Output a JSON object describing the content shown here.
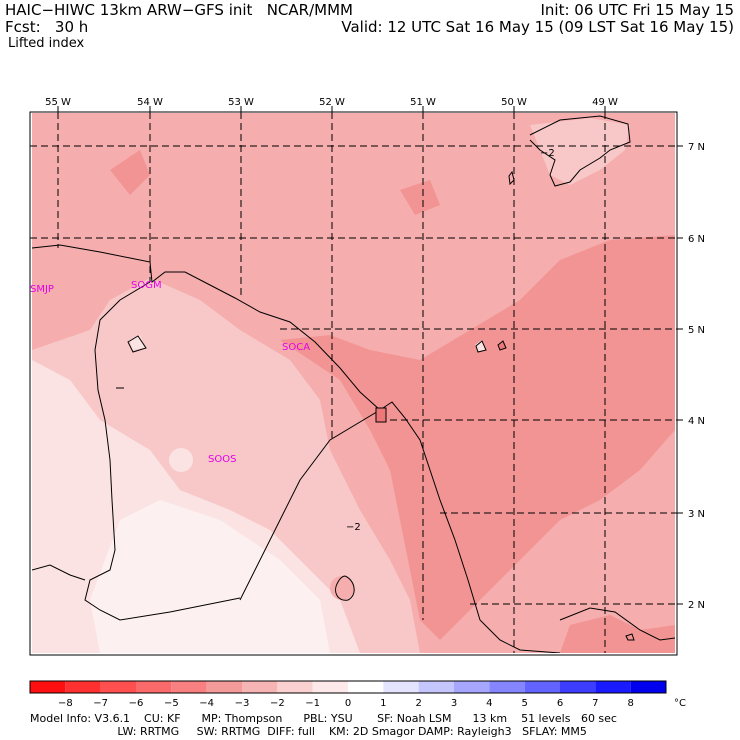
{
  "header": {
    "model": "HAIC−HIWC 13km ARW−GFS init   NCAR/MMM",
    "init": "Init: 06 UTC Fri 15 May 15",
    "fcst": "Fcst:   30 h",
    "valid": "Valid: 12 UTC Sat 16 May 15 (09 LST Sat 16 May 15)",
    "field": "Lifted index"
  },
  "map": {
    "lon_labels": [
      "55 W",
      "54 W",
      "53 W",
      "52 W",
      "51 W",
      "50 W",
      "49 W"
    ],
    "lat_labels": [
      "7 N",
      "6 N",
      "5 N",
      "4 N",
      "3 N",
      "2 N"
    ],
    "stations": [
      "SMJP",
      "SOGM",
      "SOCA",
      "SOOS"
    ],
    "contour_labels": [
      "−2",
      "−2"
    ],
    "colors": {
      "field_light": "#fbe3e3",
      "field_lightpink": "#f8c8c8",
      "field_pink": "#f5adad",
      "field_med": "#f29494",
      "station": "#e600e6"
    }
  },
  "colorbar": {
    "ticks": [
      "−8",
      "−7",
      "−6",
      "−5",
      "−4",
      "−3",
      "−2",
      "−1",
      "0",
      "1",
      "2",
      "3",
      "4",
      "5",
      "6",
      "7",
      "8"
    ],
    "unit": "°C",
    "colors": [
      "#ff1010",
      "#ff3030",
      "#ff4f4f",
      "#fb6a6a",
      "#f88080",
      "#f59a9a",
      "#f7b4b4",
      "#fad0d0",
      "#fde9e9",
      "#ffffff",
      "#e4e4ff",
      "#c6c6ff",
      "#a6a6ff",
      "#8585ff",
      "#6363ff",
      "#3d3dff",
      "#1a1aff",
      "#0000ee"
    ]
  },
  "footer": {
    "line1": "Model Info: V3.6.1    CU: KF      MP: Thompson      PBL: YSU       SF: Noah LSM      13 km    51 levels   60 sec",
    "line2": "                         LW: RRTMG     SW: RRTMG  DIFF: full    KM: 2D Smagor DAMP: Rayleigh3   SFLAY: MM5"
  }
}
